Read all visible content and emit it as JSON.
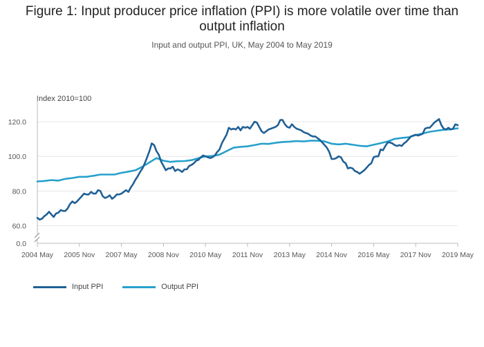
{
  "title_line1": "Figure 1: Input producer price inflation (PPI) is more volatile over time than",
  "title_line2": "output inflation",
  "subtitle": "Input and output PPI, UK, May 2004 to May 2019",
  "colors": {
    "input": "#206095",
    "output": "#27a0cc",
    "grid": "#e6e6e6",
    "axis": "#bbbbbb"
  },
  "chart_data": {
    "type": "line",
    "ylabel": "Index 2010=100",
    "xlabel": "",
    "y_ticks": [
      "0.0",
      "60.0",
      "80.0",
      "100.0",
      "120.0"
    ],
    "y_tick_values": [
      0,
      60,
      80,
      100,
      120
    ],
    "y_axis_break": true,
    "ylim": [
      55,
      130
    ],
    "x_ticks": [
      "2004 May",
      "2005 Nov",
      "2007 May",
      "2008 Nov",
      "2010 May",
      "2011 Nov",
      "2013 May",
      "2014 Nov",
      "2016 May",
      "2017 Nov",
      "2019 May"
    ],
    "x_tick_values": [
      "2004-05",
      "2005-11",
      "2007-05",
      "2008-11",
      "2010-05",
      "2011-11",
      "2013-05",
      "2014-11",
      "2016-05",
      "2017-11",
      "2019-05"
    ],
    "xlim": [
      "2004-05",
      "2019-05"
    ],
    "grid": true,
    "legend_position": "bottom-left",
    "series": [
      {
        "name": "Input PPI",
        "points": [
          [
            "2004-05",
            64.5
          ],
          [
            "2004-06",
            63.5
          ],
          [
            "2004-07",
            64.0
          ],
          [
            "2004-08",
            65.5
          ],
          [
            "2004-09",
            66.5
          ],
          [
            "2004-10",
            68.0
          ],
          [
            "2004-11",
            66.5
          ],
          [
            "2004-12",
            65.0
          ],
          [
            "2005-01",
            67.0
          ],
          [
            "2005-02",
            67.5
          ],
          [
            "2005-03",
            69.0
          ],
          [
            "2005-04",
            68.5
          ],
          [
            "2005-05",
            68.5
          ],
          [
            "2005-06",
            70.0
          ],
          [
            "2005-07",
            72.5
          ],
          [
            "2005-08",
            74.0
          ],
          [
            "2005-09",
            73.0
          ],
          [
            "2005-10",
            74.0
          ],
          [
            "2005-11",
            75.5
          ],
          [
            "2005-12",
            77.0
          ],
          [
            "2006-01",
            78.5
          ],
          [
            "2006-02",
            78.0
          ],
          [
            "2006-03",
            78.0
          ],
          [
            "2006-04",
            79.5
          ],
          [
            "2006-05",
            78.5
          ],
          [
            "2006-06",
            78.5
          ],
          [
            "2006-07",
            80.5
          ],
          [
            "2006-08",
            80.0
          ],
          [
            "2006-09",
            77.0
          ],
          [
            "2006-10",
            76.0
          ],
          [
            "2006-11",
            76.5
          ],
          [
            "2006-12",
            77.5
          ],
          [
            "2007-01",
            75.5
          ],
          [
            "2007-02",
            76.5
          ],
          [
            "2007-03",
            78.0
          ],
          [
            "2007-04",
            78.0
          ],
          [
            "2007-05",
            78.5
          ],
          [
            "2007-06",
            79.5
          ],
          [
            "2007-07",
            80.5
          ],
          [
            "2007-08",
            79.5
          ],
          [
            "2007-09",
            82.0
          ],
          [
            "2007-10",
            84.0
          ],
          [
            "2007-11",
            86.5
          ],
          [
            "2007-12",
            88.5
          ],
          [
            "2008-01",
            91.0
          ],
          [
            "2008-02",
            93.0
          ],
          [
            "2008-03",
            96.0
          ],
          [
            "2008-04",
            99.5
          ],
          [
            "2008-05",
            103.0
          ],
          [
            "2008-06",
            107.5
          ],
          [
            "2008-07",
            106.5
          ],
          [
            "2008-08",
            103.0
          ],
          [
            "2008-09",
            101.0
          ],
          [
            "2008-10",
            97.0
          ],
          [
            "2008-11",
            94.5
          ],
          [
            "2008-12",
            92.0
          ],
          [
            "2009-01",
            93.0
          ],
          [
            "2009-02",
            93.0
          ],
          [
            "2009-03",
            94.0
          ],
          [
            "2009-04",
            91.5
          ],
          [
            "2009-05",
            92.5
          ],
          [
            "2009-06",
            92.0
          ],
          [
            "2009-07",
            91.0
          ],
          [
            "2009-08",
            92.5
          ],
          [
            "2009-09",
            92.5
          ],
          [
            "2009-10",
            94.5
          ],
          [
            "2009-11",
            95.0
          ],
          [
            "2009-12",
            96.0
          ],
          [
            "2010-01",
            97.5
          ],
          [
            "2010-02",
            98.0
          ],
          [
            "2010-03",
            99.5
          ],
          [
            "2010-04",
            100.5
          ],
          [
            "2010-05",
            100.0
          ],
          [
            "2010-06",
            99.5
          ],
          [
            "2010-07",
            99.0
          ],
          [
            "2010-08",
            99.5
          ],
          [
            "2010-09",
            100.5
          ],
          [
            "2010-10",
            102.5
          ],
          [
            "2010-11",
            104.0
          ],
          [
            "2010-12",
            107.5
          ],
          [
            "2011-01",
            110.0
          ],
          [
            "2011-02",
            112.5
          ],
          [
            "2011-03",
            116.5
          ],
          [
            "2011-04",
            115.5
          ],
          [
            "2011-05",
            116.0
          ],
          [
            "2011-06",
            115.5
          ],
          [
            "2011-07",
            117.0
          ],
          [
            "2011-08",
            115.0
          ],
          [
            "2011-09",
            117.0
          ],
          [
            "2011-10",
            116.5
          ],
          [
            "2011-11",
            117.0
          ],
          [
            "2011-12",
            116.0
          ],
          [
            "2012-01",
            118.0
          ],
          [
            "2012-02",
            120.0
          ],
          [
            "2012-03",
            119.5
          ],
          [
            "2012-04",
            117.0
          ],
          [
            "2012-05",
            114.5
          ],
          [
            "2012-06",
            113.5
          ],
          [
            "2012-07",
            114.5
          ],
          [
            "2012-08",
            115.5
          ],
          [
            "2012-09",
            116.0
          ],
          [
            "2012-10",
            116.5
          ],
          [
            "2012-11",
            117.0
          ],
          [
            "2012-12",
            118.0
          ],
          [
            "2013-01",
            121.0
          ],
          [
            "2013-02",
            121.0
          ],
          [
            "2013-03",
            118.5
          ],
          [
            "2013-04",
            117.0
          ],
          [
            "2013-05",
            116.5
          ],
          [
            "2013-06",
            118.5
          ],
          [
            "2013-07",
            117.0
          ],
          [
            "2013-08",
            116.0
          ],
          [
            "2013-09",
            115.5
          ],
          [
            "2013-10",
            115.0
          ],
          [
            "2013-11",
            114.0
          ],
          [
            "2013-12",
            113.5
          ],
          [
            "2014-01",
            113.0
          ],
          [
            "2014-02",
            112.0
          ],
          [
            "2014-03",
            111.5
          ],
          [
            "2014-04",
            111.5
          ],
          [
            "2014-05",
            110.5
          ],
          [
            "2014-06",
            109.5
          ],
          [
            "2014-07",
            108.0
          ],
          [
            "2014-08",
            106.5
          ],
          [
            "2014-09",
            105.0
          ],
          [
            "2014-10",
            102.5
          ],
          [
            "2014-11",
            98.5
          ],
          [
            "2014-12",
            98.5
          ],
          [
            "2015-01",
            99.0
          ],
          [
            "2015-02",
            100.0
          ],
          [
            "2015-03",
            99.5
          ],
          [
            "2015-04",
            97.0
          ],
          [
            "2015-05",
            96.0
          ],
          [
            "2015-06",
            93.0
          ],
          [
            "2015-07",
            93.5
          ],
          [
            "2015-08",
            93.0
          ],
          [
            "2015-09",
            91.5
          ],
          [
            "2015-10",
            91.0
          ],
          [
            "2015-11",
            90.0
          ],
          [
            "2015-12",
            91.0
          ],
          [
            "2016-01",
            92.0
          ],
          [
            "2016-02",
            93.5
          ],
          [
            "2016-03",
            95.0
          ],
          [
            "2016-04",
            96.0
          ],
          [
            "2016-05",
            99.5
          ],
          [
            "2016-06",
            100.0
          ],
          [
            "2016-07",
            100.0
          ],
          [
            "2016-08",
            104.0
          ],
          [
            "2016-09",
            103.5
          ],
          [
            "2016-10",
            106.0
          ],
          [
            "2016-11",
            108.0
          ],
          [
            "2016-12",
            108.0
          ],
          [
            "2017-01",
            107.5
          ],
          [
            "2017-02",
            106.5
          ],
          [
            "2017-03",
            106.0
          ],
          [
            "2017-04",
            106.5
          ],
          [
            "2017-05",
            106.0
          ],
          [
            "2017-06",
            107.5
          ],
          [
            "2017-07",
            108.5
          ],
          [
            "2017-08",
            110.0
          ],
          [
            "2017-09",
            111.5
          ],
          [
            "2017-10",
            112.0
          ],
          [
            "2017-11",
            112.5
          ],
          [
            "2017-12",
            112.0
          ],
          [
            "2018-01",
            112.5
          ],
          [
            "2018-02",
            113.0
          ],
          [
            "2018-03",
            116.0
          ],
          [
            "2018-04",
            116.5
          ],
          [
            "2018-05",
            116.5
          ],
          [
            "2018-06",
            118.0
          ],
          [
            "2018-07",
            119.5
          ],
          [
            "2018-08",
            120.5
          ],
          [
            "2018-09",
            121.5
          ],
          [
            "2018-10",
            118.0
          ],
          [
            "2018-11",
            116.0
          ],
          [
            "2018-12",
            115.5
          ],
          [
            "2019-01",
            116.5
          ],
          [
            "2019-02",
            115.5
          ],
          [
            "2019-03",
            116.0
          ],
          [
            "2019-04",
            118.5
          ],
          [
            "2019-05",
            118.0
          ]
        ]
      },
      {
        "name": "Output PPI",
        "points": [
          [
            "2004-05",
            85.5
          ],
          [
            "2004-08",
            85.8
          ],
          [
            "2004-11",
            86.3
          ],
          [
            "2005-02",
            86.0
          ],
          [
            "2005-05",
            87.0
          ],
          [
            "2005-08",
            87.5
          ],
          [
            "2005-11",
            88.2
          ],
          [
            "2006-02",
            88.2
          ],
          [
            "2006-05",
            88.8
          ],
          [
            "2006-08",
            89.5
          ],
          [
            "2006-11",
            89.5
          ],
          [
            "2007-02",
            89.5
          ],
          [
            "2007-05",
            90.5
          ],
          [
            "2007-08",
            91.2
          ],
          [
            "2007-11",
            92.0
          ],
          [
            "2008-02",
            94.0
          ],
          [
            "2008-05",
            96.5
          ],
          [
            "2008-08",
            99.0
          ],
          [
            "2008-11",
            97.5
          ],
          [
            "2009-02",
            96.8
          ],
          [
            "2009-05",
            97.2
          ],
          [
            "2009-08",
            97.3
          ],
          [
            "2009-11",
            97.8
          ],
          [
            "2010-02",
            99.0
          ],
          [
            "2010-05",
            100.0
          ],
          [
            "2010-08",
            100.2
          ],
          [
            "2010-11",
            101.0
          ],
          [
            "2011-02",
            103.0
          ],
          [
            "2011-05",
            105.0
          ],
          [
            "2011-08",
            105.5
          ],
          [
            "2011-11",
            105.8
          ],
          [
            "2012-02",
            106.5
          ],
          [
            "2012-05",
            107.3
          ],
          [
            "2012-08",
            107.2
          ],
          [
            "2012-11",
            107.8
          ],
          [
            "2013-02",
            108.3
          ],
          [
            "2013-05",
            108.5
          ],
          [
            "2013-08",
            108.8
          ],
          [
            "2013-11",
            108.6
          ],
          [
            "2014-02",
            109.0
          ],
          [
            "2014-05",
            109.0
          ],
          [
            "2014-08",
            108.6
          ],
          [
            "2014-11",
            107.3
          ],
          [
            "2015-02",
            106.9
          ],
          [
            "2015-05",
            107.3
          ],
          [
            "2015-08",
            106.7
          ],
          [
            "2015-11",
            106.1
          ],
          [
            "2016-02",
            105.8
          ],
          [
            "2016-05",
            106.7
          ],
          [
            "2016-08",
            107.6
          ],
          [
            "2016-11",
            108.6
          ],
          [
            "2017-02",
            110.1
          ],
          [
            "2017-05",
            110.6
          ],
          [
            "2017-08",
            111.0
          ],
          [
            "2017-11",
            112.3
          ],
          [
            "2018-02",
            113.2
          ],
          [
            "2018-05",
            114.2
          ],
          [
            "2018-08",
            114.8
          ],
          [
            "2018-11",
            115.3
          ],
          [
            "2019-02",
            115.6
          ],
          [
            "2019-05",
            116.2
          ]
        ]
      }
    ]
  }
}
